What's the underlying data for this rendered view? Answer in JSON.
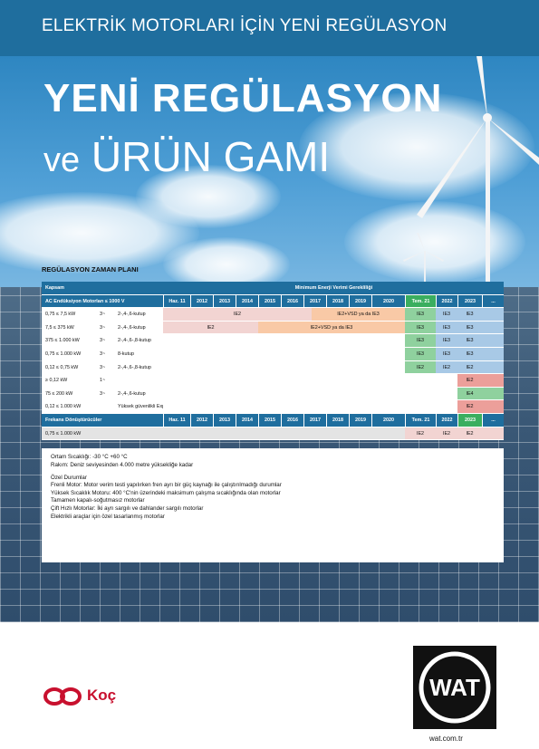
{
  "header": {
    "top_title": "ELEKTRİK MOTORLARI İÇİN YENİ REGÜLASYON"
  },
  "hero": {
    "title_line1": "YENİ REGÜLASYON",
    "title_line2_small": "ve",
    "title_line2": "ÜRÜN GAMI"
  },
  "table": {
    "caption": "REGÜLASYON ZAMAN PLANI",
    "head": {
      "col1": "Kapsam",
      "col2": "Minimum Enerji Verimi Gerekliliği"
    },
    "section1": {
      "label": "AC Endüksiyon Motorları ≤ 1000 V",
      "years": [
        "Haz. 11",
        "2012",
        "2013",
        "2014",
        "2015",
        "2016",
        "2017",
        "2018",
        "2019",
        "2020",
        "Tem. 21",
        "2022",
        "2023",
        "..."
      ],
      "rows": [
        {
          "range": "0,75 ≤ 7,5 kW",
          "phase": "3~",
          "poles": "2-,4-,6-kutup",
          "a": "IE2",
          "b": "IE2+VSD ya da IE3",
          "y21": "IE3",
          "y22": "IE3",
          "y23": "IE3"
        },
        {
          "range": "7,5 ≤ 375 kW",
          "phase": "3~",
          "poles": "2-,4-,6-kutup",
          "a": "IE2",
          "b": "IE2+VSD ya da IE3",
          "y21": "IE3",
          "y22": "IE3",
          "y23": "IE3"
        },
        {
          "range": "375 ≤ 1.000 kW",
          "phase": "3~",
          "poles": "2-,4-,6-,8-kutup",
          "y21": "IE3",
          "y22": "IE3",
          "y23": "IE3"
        },
        {
          "range": "0,75 ≤ 1.000 kW",
          "phase": "3~",
          "poles": "8-kutup",
          "y21": "IE3",
          "y22": "IE3",
          "y23": "IE3"
        },
        {
          "range": "0,12 ≤ 0,75 kW",
          "phase": "3~",
          "poles": "2-,4-,6-,8-kutup",
          "y21": "IE2",
          "y22": "IE2",
          "y23": "IE2"
        },
        {
          "range": "≥ 0,12 kW",
          "phase": "1~",
          "poles": "",
          "y23": "IE2"
        },
        {
          "range": "75 ≤ 200 kW",
          "phase": "3~",
          "poles": "2-,4-,6-kutup",
          "y23": "IE4"
        },
        {
          "range": "0,12 ≤ 1.000 kW",
          "phase": "",
          "poles": "Yüksek güvenlikli Exp.",
          "y23": "IE2"
        }
      ]
    },
    "section2": {
      "label": "Frekans Dönüştürücüler",
      "years": [
        "Haz. 11",
        "2012",
        "2013",
        "2014",
        "2015",
        "2016",
        "2017",
        "2018",
        "2019",
        "2020",
        "Tem. 21",
        "2022",
        "2023",
        "..."
      ],
      "row": {
        "range": "0,75 ≤ 1.000 kW",
        "y21": "IE2",
        "y22": "IE2",
        "y23": "IE2"
      }
    }
  },
  "notes": {
    "lines1": [
      "Ortam Sıcaklığı: -30 °C +60 °C",
      "Rakım: Deniz seviyesinden 4.000 metre yüksekliğe kadar"
    ],
    "heading": "Özel Durumlar",
    "lines2": [
      "Frenli Motor: Motor verim testi yapılırken fren ayrı bir güç kaynağı ile çalıştırılmadığı durumlar",
      "Yüksek Sıcaklık Motoru: 400 °C'nin üzerindeki maksimum çalışma sıcaklığında olan motorlar",
      "Tamamen kapalı-soğutmasız motorlar",
      "Çift Hızlı Motorlar: İki ayrı sargılı ve dahlander sargılı motorlar",
      "Elektrikli araçlar için özel tasarlanmış motorlar"
    ]
  },
  "footer": {
    "koc_text": "Koç",
    "wat_logo": "WAT",
    "website": "wat.com.tr"
  },
  "colors": {
    "header_blue": "#1f6e9e",
    "green": "#3aae5f",
    "ie2_pink": "#f2d4d2",
    "vsd_peach": "#f9c9a6",
    "ie3_blue": "#a8c9e6",
    "koc_red": "#c8102e"
  }
}
